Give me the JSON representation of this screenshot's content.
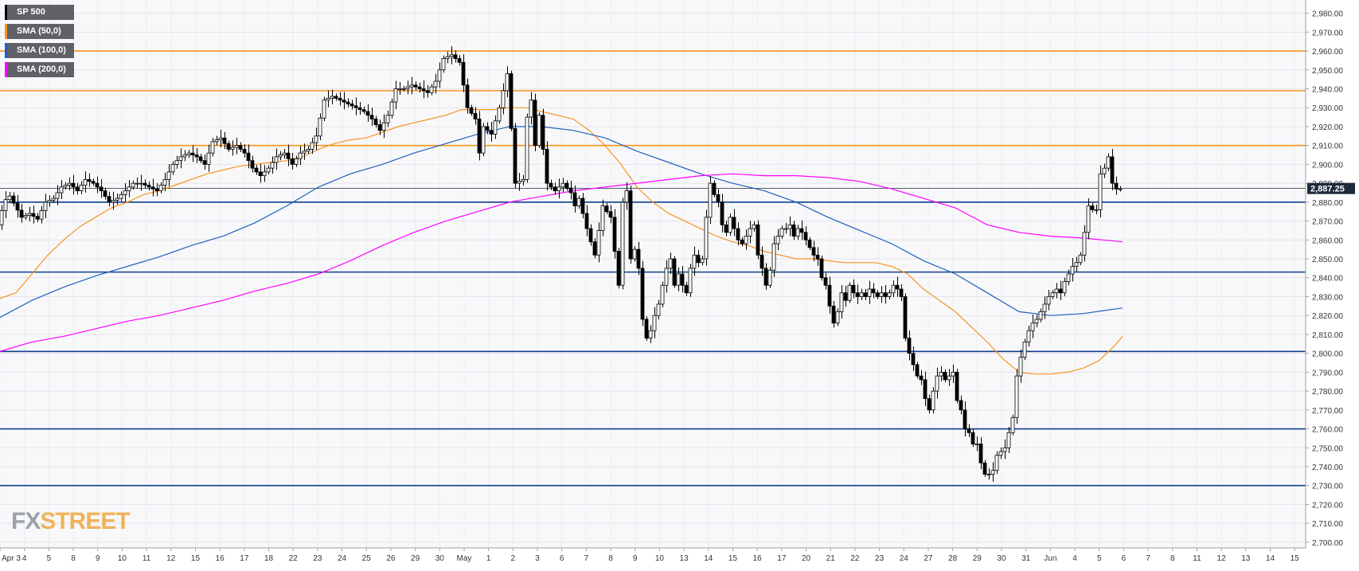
{
  "chart_data": {
    "type": "candlestick",
    "ylim": [
      2697,
      2987
    ],
    "y_ticks": [
      "2,700.00",
      "2,710.00",
      "2,720.00",
      "2,730.00",
      "2,740.00",
      "2,750.00",
      "2,760.00",
      "2,770.00",
      "2,780.00",
      "2,790.00",
      "2,800.00",
      "2,810.00",
      "2,820.00",
      "2,830.00",
      "2,840.00",
      "2,850.00",
      "2,860.00",
      "2,870.00",
      "2,880.00",
      "2,890.00",
      "2,900.00",
      "2,910.00",
      "2,920.00",
      "2,930.00",
      "2,940.00",
      "2,950.00",
      "2,960.00",
      "2,970.00",
      "2,980.00"
    ],
    "x_ticks": [
      "Apr 3",
      "4",
      "5",
      "8",
      "9",
      "10",
      "11",
      "12",
      "15",
      "16",
      "17",
      "18",
      "22",
      "23",
      "24",
      "25",
      "26",
      "29",
      "30",
      "May",
      "1",
      "2",
      "3",
      "6",
      "7",
      "8",
      "9",
      "10",
      "13",
      "14",
      "15",
      "16",
      "17",
      "20",
      "21",
      "22",
      "23",
      "24",
      "27",
      "28",
      "29",
      "30",
      "31",
      "Jun",
      "4",
      "5",
      "6",
      "7",
      "8",
      "11",
      "12",
      "13",
      "14",
      "15"
    ],
    "last_price": "2,887.25",
    "legend": [
      {
        "name": "SP 500",
        "color": "#000000"
      },
      {
        "name": "SMA (50,0)",
        "color": "#f7931e"
      },
      {
        "name": "SMA (100,0)",
        "color": "#1f5fbf"
      },
      {
        "name": "SMA (200,0)",
        "color": "#ff00ff"
      }
    ],
    "resistance_levels": [
      2910,
      2939,
      2960
    ],
    "support_levels": [
      2730,
      2760,
      2801,
      2843,
      2880
    ],
    "price_path": [
      [
        0,
        2868
      ],
      [
        8,
        2880
      ],
      [
        14,
        2884
      ],
      [
        22,
        2878
      ],
      [
        30,
        2872
      ],
      [
        40,
        2874
      ],
      [
        50,
        2871
      ],
      [
        60,
        2880
      ],
      [
        70,
        2882
      ],
      [
        80,
        2888
      ],
      [
        90,
        2890
      ],
      [
        100,
        2886
      ],
      [
        110,
        2892
      ],
      [
        120,
        2890
      ],
      [
        130,
        2886
      ],
      [
        140,
        2880
      ],
      [
        150,
        2882
      ],
      [
        160,
        2886
      ],
      [
        170,
        2890
      ],
      [
        180,
        2890
      ],
      [
        190,
        2888
      ],
      [
        200,
        2886
      ],
      [
        210,
        2892
      ],
      [
        220,
        2900
      ],
      [
        230,
        2904
      ],
      [
        240,
        2906
      ],
      [
        250,
        2904
      ],
      [
        260,
        2900
      ],
      [
        270,
        2912
      ],
      [
        280,
        2914
      ],
      [
        290,
        2908
      ],
      [
        300,
        2910
      ],
      [
        310,
        2906
      ],
      [
        320,
        2898
      ],
      [
        330,
        2894
      ],
      [
        340,
        2898
      ],
      [
        350,
        2904
      ],
      [
        360,
        2906
      ],
      [
        370,
        2900
      ],
      [
        380,
        2906
      ],
      [
        390,
        2908
      ],
      [
        400,
        2915
      ],
      [
        410,
        2934
      ],
      [
        420,
        2936
      ],
      [
        430,
        2934
      ],
      [
        440,
        2932
      ],
      [
        450,
        2930
      ],
      [
        460,
        2928
      ],
      [
        470,
        2924
      ],
      [
        480,
        2918
      ],
      [
        490,
        2926
      ],
      [
        500,
        2940
      ],
      [
        510,
        2940
      ],
      [
        520,
        2942
      ],
      [
        530,
        2940
      ],
      [
        540,
        2938
      ],
      [
        550,
        2944
      ],
      [
        560,
        2956
      ],
      [
        570,
        2958
      ],
      [
        580,
        2954
      ],
      [
        590,
        2930
      ],
      [
        600,
        2924
      ],
      [
        605,
        2906
      ],
      [
        610,
        2920
      ],
      [
        620,
        2916
      ],
      [
        630,
        2930
      ],
      [
        640,
        2948
      ],
      [
        650,
        2890
      ],
      [
        660,
        2892
      ],
      [
        665,
        2925
      ],
      [
        670,
        2934
      ],
      [
        675,
        2910
      ],
      [
        680,
        2926
      ],
      [
        690,
        2890
      ],
      [
        700,
        2886
      ],
      [
        710,
        2890
      ],
      [
        720,
        2885
      ],
      [
        725,
        2878
      ],
      [
        730,
        2882
      ],
      [
        740,
        2866
      ],
      [
        750,
        2852
      ],
      [
        760,
        2878
      ],
      [
        770,
        2872
      ],
      [
        780,
        2836
      ],
      [
        785,
        2880
      ],
      [
        790,
        2886
      ],
      [
        795,
        2850
      ],
      [
        800,
        2855
      ],
      [
        805,
        2845
      ],
      [
        810,
        2818
      ],
      [
        815,
        2808
      ],
      [
        820,
        2812
      ],
      [
        825,
        2820
      ],
      [
        830,
        2826
      ],
      [
        835,
        2836
      ],
      [
        840,
        2845
      ],
      [
        845,
        2850
      ],
      [
        850,
        2836
      ],
      [
        855,
        2842
      ],
      [
        860,
        2836
      ],
      [
        865,
        2832
      ],
      [
        870,
        2845
      ],
      [
        875,
        2852
      ],
      [
        880,
        2848
      ],
      [
        885,
        2850
      ],
      [
        890,
        2872
      ],
      [
        895,
        2890
      ],
      [
        900,
        2884
      ],
      [
        905,
        2880
      ],
      [
        910,
        2868
      ],
      [
        915,
        2864
      ],
      [
        920,
        2872
      ],
      [
        925,
        2866
      ],
      [
        930,
        2860
      ],
      [
        935,
        2858
      ],
      [
        940,
        2862
      ],
      [
        945,
        2866
      ],
      [
        950,
        2868
      ],
      [
        955,
        2852
      ],
      [
        960,
        2845
      ],
      [
        965,
        2836
      ],
      [
        970,
        2844
      ],
      [
        975,
        2858
      ],
      [
        980,
        2862
      ],
      [
        985,
        2866
      ],
      [
        990,
        2866
      ],
      [
        995,
        2868
      ],
      [
        1000,
        2862
      ],
      [
        1005,
        2866
      ],
      [
        1010,
        2864
      ],
      [
        1015,
        2860
      ],
      [
        1020,
        2856
      ],
      [
        1025,
        2852
      ],
      [
        1030,
        2850
      ],
      [
        1035,
        2840
      ],
      [
        1040,
        2836
      ],
      [
        1045,
        2825
      ],
      [
        1050,
        2816
      ],
      [
        1055,
        2822
      ],
      [
        1060,
        2832
      ],
      [
        1065,
        2828
      ],
      [
        1070,
        2836
      ],
      [
        1075,
        2832
      ],
      [
        1080,
        2830
      ],
      [
        1085,
        2832
      ],
      [
        1090,
        2830
      ],
      [
        1095,
        2834
      ],
      [
        1100,
        2832
      ],
      [
        1105,
        2830
      ],
      [
        1110,
        2832
      ],
      [
        1115,
        2830
      ],
      [
        1120,
        2832
      ],
      [
        1125,
        2836
      ],
      [
        1130,
        2834
      ],
      [
        1135,
        2830
      ],
      [
        1140,
        2808
      ],
      [
        1145,
        2800
      ],
      [
        1150,
        2794
      ],
      [
        1155,
        2788
      ],
      [
        1160,
        2786
      ],
      [
        1165,
        2776
      ],
      [
        1170,
        2770
      ],
      [
        1175,
        2780
      ],
      [
        1180,
        2788
      ],
      [
        1185,
        2790
      ],
      [
        1190,
        2786
      ],
      [
        1195,
        2788
      ],
      [
        1200,
        2790
      ],
      [
        1205,
        2775
      ],
      [
        1210,
        2770
      ],
      [
        1215,
        2760
      ],
      [
        1220,
        2758
      ],
      [
        1225,
        2752
      ],
      [
        1230,
        2752
      ],
      [
        1235,
        2742
      ],
      [
        1240,
        2736
      ],
      [
        1245,
        2736
      ],
      [
        1250,
        2738
      ],
      [
        1255,
        2746
      ],
      [
        1260,
        2748
      ],
      [
        1265,
        2750
      ],
      [
        1270,
        2758
      ],
      [
        1275,
        2766
      ],
      [
        1280,
        2788
      ],
      [
        1285,
        2798
      ],
      [
        1290,
        2806
      ],
      [
        1295,
        2812
      ],
      [
        1300,
        2816
      ],
      [
        1305,
        2818
      ],
      [
        1310,
        2822
      ],
      [
        1315,
        2826
      ],
      [
        1320,
        2830
      ],
      [
        1325,
        2832
      ],
      [
        1330,
        2834
      ],
      [
        1335,
        2832
      ],
      [
        1340,
        2838
      ],
      [
        1345,
        2842
      ],
      [
        1350,
        2846
      ],
      [
        1355,
        2848
      ],
      [
        1360,
        2852
      ],
      [
        1365,
        2864
      ],
      [
        1370,
        2878
      ],
      [
        1375,
        2876
      ],
      [
        1380,
        2876
      ],
      [
        1385,
        2895
      ],
      [
        1390,
        2898
      ],
      [
        1395,
        2904
      ],
      [
        1400,
        2890
      ],
      [
        1405,
        2887
      ]
    ],
    "sma_50_path": [
      [
        0,
        2829
      ],
      [
        20,
        2832
      ],
      [
        40,
        2842
      ],
      [
        60,
        2852
      ],
      [
        80,
        2860
      ],
      [
        100,
        2867
      ],
      [
        120,
        2872
      ],
      [
        140,
        2877
      ],
      [
        160,
        2880
      ],
      [
        180,
        2884
      ],
      [
        200,
        2886
      ],
      [
        220,
        2889
      ],
      [
        240,
        2892
      ],
      [
        260,
        2895
      ],
      [
        280,
        2897
      ],
      [
        300,
        2899
      ],
      [
        320,
        2900
      ],
      [
        340,
        2901
      ],
      [
        360,
        2902
      ],
      [
        380,
        2904
      ],
      [
        400,
        2908
      ],
      [
        420,
        2911
      ],
      [
        440,
        2913
      ],
      [
        460,
        2914
      ],
      [
        480,
        2917
      ],
      [
        500,
        2920
      ],
      [
        520,
        2922
      ],
      [
        540,
        2924
      ],
      [
        560,
        2926
      ],
      [
        580,
        2929
      ],
      [
        600,
        2929
      ],
      [
        620,
        2929
      ],
      [
        640,
        2930
      ],
      [
        660,
        2930
      ],
      [
        680,
        2928
      ],
      [
        700,
        2926
      ],
      [
        720,
        2924
      ],
      [
        740,
        2918
      ],
      [
        760,
        2910
      ],
      [
        780,
        2900
      ],
      [
        800,
        2888
      ],
      [
        820,
        2880
      ],
      [
        840,
        2874
      ],
      [
        860,
        2870
      ],
      [
        880,
        2866
      ],
      [
        900,
        2862
      ],
      [
        920,
        2859
      ],
      [
        940,
        2857
      ],
      [
        960,
        2854
      ],
      [
        980,
        2852
      ],
      [
        1000,
        2850
      ],
      [
        1020,
        2850
      ],
      [
        1040,
        2849
      ],
      [
        1060,
        2848
      ],
      [
        1080,
        2848
      ],
      [
        1100,
        2848
      ],
      [
        1120,
        2846
      ],
      [
        1140,
        2842
      ],
      [
        1160,
        2834
      ],
      [
        1180,
        2828
      ],
      [
        1200,
        2822
      ],
      [
        1220,
        2814
      ],
      [
        1240,
        2806
      ],
      [
        1260,
        2797
      ],
      [
        1280,
        2790
      ],
      [
        1300,
        2789
      ],
      [
        1320,
        2789
      ],
      [
        1340,
        2790
      ],
      [
        1360,
        2792
      ],
      [
        1380,
        2796
      ],
      [
        1400,
        2804
      ],
      [
        1410,
        2809
      ]
    ],
    "sma_100_path": [
      [
        0,
        2819
      ],
      [
        40,
        2828
      ],
      [
        80,
        2835
      ],
      [
        120,
        2841
      ],
      [
        160,
        2846
      ],
      [
        200,
        2851
      ],
      [
        240,
        2857
      ],
      [
        280,
        2862
      ],
      [
        320,
        2869
      ],
      [
        360,
        2878
      ],
      [
        400,
        2888
      ],
      [
        440,
        2895
      ],
      [
        480,
        2900
      ],
      [
        520,
        2906
      ],
      [
        560,
        2911
      ],
      [
        600,
        2916
      ],
      [
        640,
        2920
      ],
      [
        680,
        2920
      ],
      [
        720,
        2918
      ],
      [
        760,
        2914
      ],
      [
        800,
        2907
      ],
      [
        840,
        2901
      ],
      [
        880,
        2895
      ],
      [
        920,
        2890
      ],
      [
        960,
        2886
      ],
      [
        1000,
        2880
      ],
      [
        1040,
        2872
      ],
      [
        1080,
        2865
      ],
      [
        1120,
        2858
      ],
      [
        1160,
        2849
      ],
      [
        1200,
        2842
      ],
      [
        1240,
        2832
      ],
      [
        1280,
        2822
      ],
      [
        1320,
        2820
      ],
      [
        1360,
        2821
      ],
      [
        1410,
        2824
      ]
    ],
    "sma_200_path": [
      [
        0,
        2801
      ],
      [
        40,
        2806
      ],
      [
        80,
        2809
      ],
      [
        120,
        2813
      ],
      [
        160,
        2817
      ],
      [
        200,
        2820
      ],
      [
        240,
        2824
      ],
      [
        280,
        2828
      ],
      [
        320,
        2833
      ],
      [
        360,
        2837
      ],
      [
        400,
        2842
      ],
      [
        440,
        2849
      ],
      [
        480,
        2857
      ],
      [
        520,
        2864
      ],
      [
        560,
        2870
      ],
      [
        600,
        2875
      ],
      [
        640,
        2880
      ],
      [
        680,
        2883
      ],
      [
        720,
        2886
      ],
      [
        760,
        2888
      ],
      [
        800,
        2890
      ],
      [
        840,
        2892
      ],
      [
        880,
        2894
      ],
      [
        920,
        2895
      ],
      [
        960,
        2894
      ],
      [
        1000,
        2894
      ],
      [
        1040,
        2893
      ],
      [
        1080,
        2891
      ],
      [
        1120,
        2887
      ],
      [
        1160,
        2882
      ],
      [
        1200,
        2877
      ],
      [
        1240,
        2868
      ],
      [
        1280,
        2864
      ],
      [
        1320,
        2862
      ],
      [
        1360,
        2861
      ],
      [
        1410,
        2859
      ]
    ]
  },
  "logo": {
    "part1": "FX",
    "part2": "STREET"
  }
}
